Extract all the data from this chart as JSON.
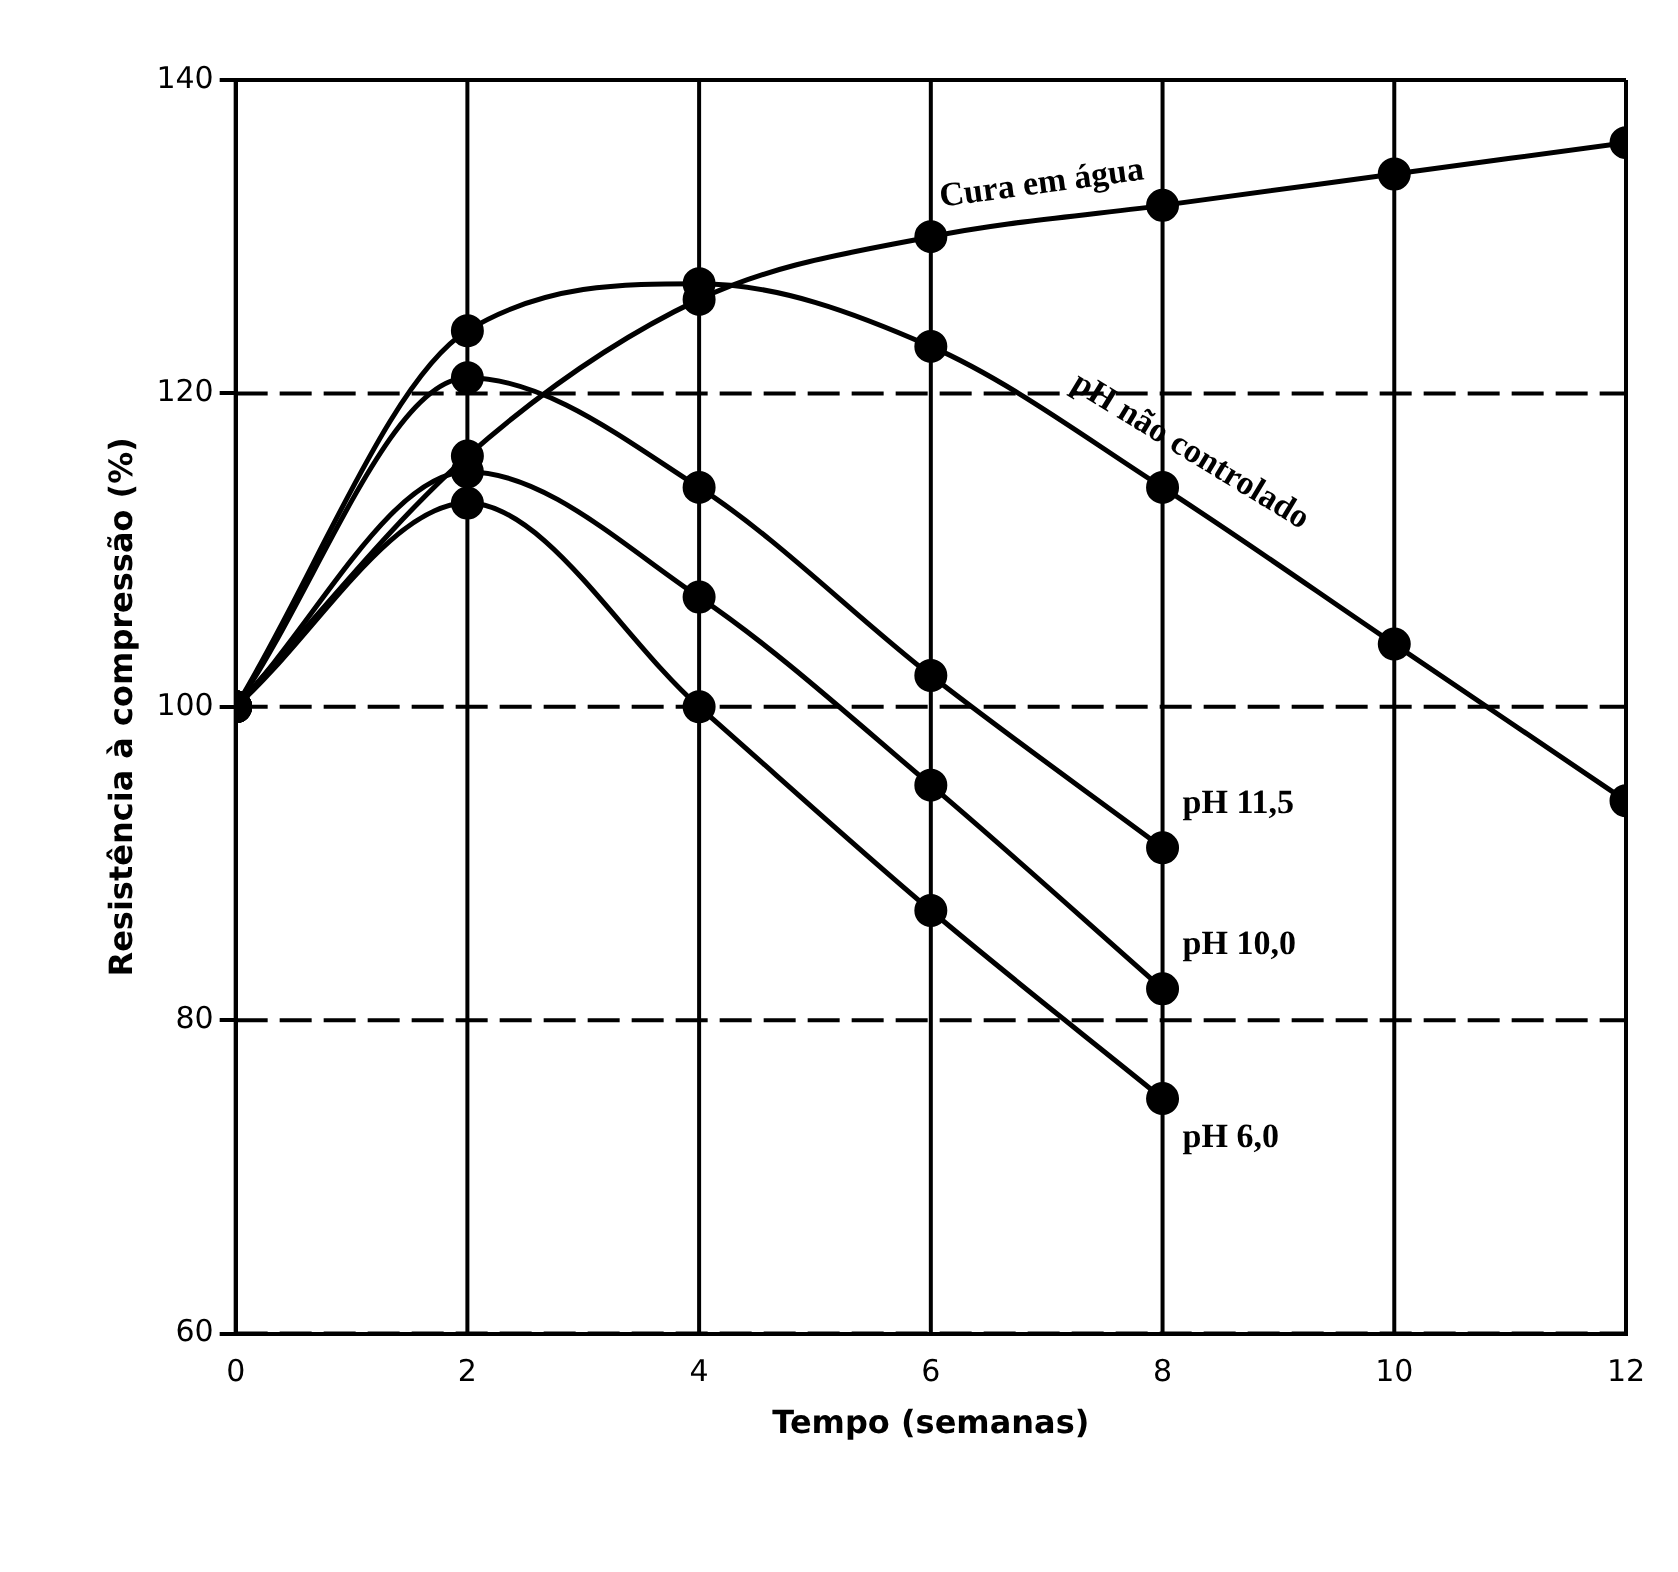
{
  "chart_data": {
    "type": "line",
    "xlabel": "Tempo (semanas)",
    "ylabel": "Resistência à compressão (%)",
    "xlim": [
      0,
      12
    ],
    "xticks": [
      0,
      2,
      4,
      6,
      8,
      10,
      12
    ],
    "ylim": [
      60,
      140
    ],
    "yticks": [
      60,
      80,
      100,
      120,
      140
    ],
    "grid": true,
    "legend": false,
    "marker": "circle",
    "line_style": "solid",
    "series": [
      {
        "name": "Cura em água",
        "color": "#000000",
        "x": [
          0,
          2,
          4,
          6,
          8,
          10,
          12
        ],
        "values": [
          100,
          116,
          126,
          130,
          132,
          134,
          136
        ]
      },
      {
        "name": "pH não controlado",
        "color": "#000000",
        "x": [
          0,
          2,
          4,
          6,
          8,
          10,
          12
        ],
        "values": [
          100,
          124,
          127,
          123,
          114,
          104,
          94
        ]
      },
      {
        "name": "pH 11,5",
        "color": "#000000",
        "x": [
          0,
          2,
          4,
          6,
          8
        ],
        "values": [
          100,
          121,
          114,
          102,
          91
        ]
      },
      {
        "name": "pH 10,0",
        "color": "#000000",
        "x": [
          0,
          2,
          4,
          6,
          8
        ],
        "values": [
          100,
          115,
          107,
          95,
          82
        ]
      },
      {
        "name": "pH 6,0",
        "color": "#000000",
        "x": [
          0,
          2,
          4,
          6,
          8
        ],
        "values": [
          100,
          113,
          100,
          87,
          75
        ]
      }
    ]
  }
}
